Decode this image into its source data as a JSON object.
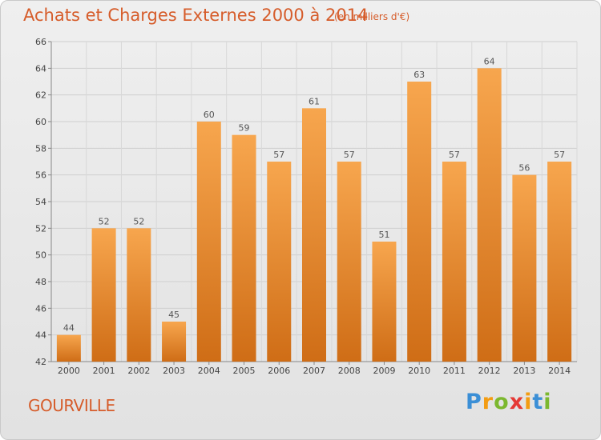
{
  "header": {
    "title": "Achats et Charges Externes 2000 à 2014",
    "unit": "(en milliers d'€)"
  },
  "footer": {
    "commune": "GOURVILLE",
    "logo_letters": [
      "P",
      "r",
      "o",
      "x",
      "i",
      "t",
      "i"
    ],
    "logo_colors": [
      "#3b8fd6",
      "#f39c12",
      "#7cb82f",
      "#e53935",
      "#f39c12",
      "#3b8fd6",
      "#7cb82f"
    ]
  },
  "chart_data": {
    "type": "bar",
    "title": "Achats et Charges Externes 2000 à 2014",
    "subtitle": "(en milliers d'€)",
    "categories": [
      "2000",
      "2001",
      "2002",
      "2003",
      "2004",
      "2005",
      "2006",
      "2007",
      "2008",
      "2009",
      "2010",
      "2011",
      "2012",
      "2013",
      "2014"
    ],
    "values": [
      44,
      52,
      52,
      45,
      60,
      59,
      57,
      61,
      57,
      51,
      63,
      57,
      64,
      56,
      57
    ],
    "ylim": [
      42,
      66
    ],
    "yticks": [
      "42",
      "44",
      "46",
      "48",
      "50",
      "52",
      "54",
      "56",
      "58",
      "60",
      "62",
      "64",
      "66"
    ],
    "grid": true,
    "bar_color_top": "#f7a64e",
    "bar_color_bottom": "#cf6d16",
    "label_color": "#555555"
  }
}
